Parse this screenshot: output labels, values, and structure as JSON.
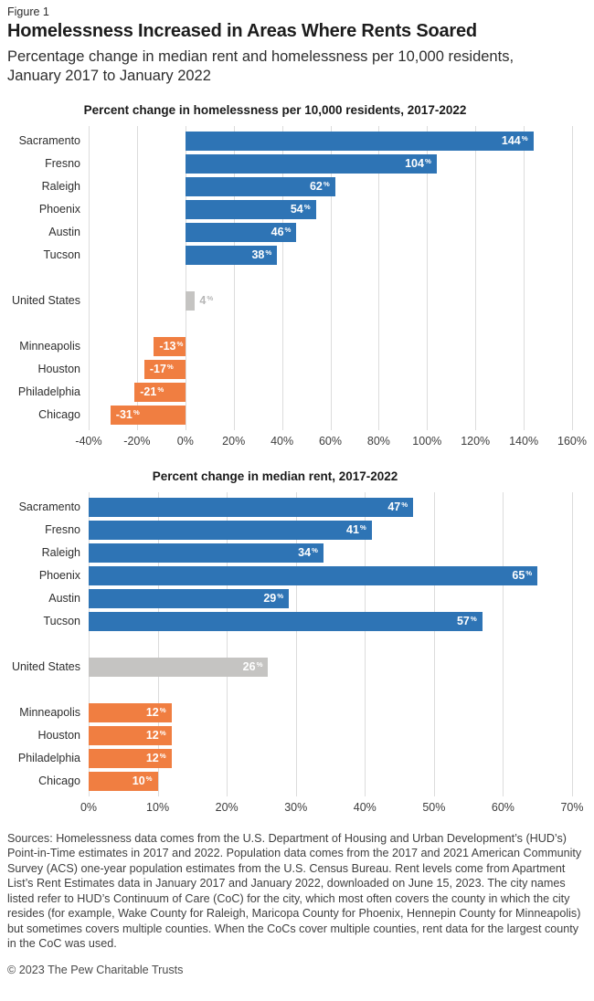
{
  "page": {
    "figure_label": "Figure 1",
    "title": "Homelessness Increased in Areas Where Rents Soared",
    "subtitle": "Percentage change in median rent and homelessness per 10,000 residents, January 2017 to January 2022",
    "sources": "Sources: Homelessness data comes from the U.S. Department of Housing and Urban Development’s (HUD’s) Point-in-Time estimates in 2017 and 2022. Population data comes from the 2017 and 2021 American Community Survey (ACS) one-year population estimates from the U.S. Census Bureau. Rent levels come from Apartment List’s Rent Estimates data in January 2017 and January 2022, downloaded on June 15, 2023. The city names listed refer to HUD’s Continuum of Care (CoC) for the city, which most often covers the county in which the city resides (for example, Wake County for Raleigh, Maricopa County for Phoenix, Hennepin County for Minneapolis) but sometimes covers multiple counties. When the CoCs cover multiple counties, rent data for the largest county in the CoC was used.",
    "copyright": "© 2023 The Pew Charitable Trusts"
  },
  "colors": {
    "blue": "#2E74B5",
    "orange": "#F07E41",
    "gray": "#C5C4C2",
    "gray_label": "#B7B7B7",
    "gridline": "#DCDCDC",
    "axis_text": "#3D3D3D",
    "bar_label": "#FFFFFF"
  },
  "chart_data": [
    {
      "type": "bar",
      "orientation": "horizontal",
      "title": "Percent change in homelessness per 10,000 residents, 2017-2022",
      "xlabel": "",
      "ylabel": "",
      "grid": true,
      "legend": "none",
      "axis": {
        "min": -40,
        "max": 160,
        "step": 20,
        "unit": "%"
      },
      "groups": [
        {
          "color": "blue",
          "rows": [
            {
              "label": "Sacramento",
              "value": 144
            },
            {
              "label": "Fresno",
              "value": 104
            },
            {
              "label": "Raleigh",
              "value": 62
            },
            {
              "label": "Phoenix",
              "value": 54
            },
            {
              "label": "Austin",
              "value": 46
            },
            {
              "label": "Tucson",
              "value": 38
            }
          ]
        },
        {
          "color": "gray",
          "rows": [
            {
              "label": "United States",
              "value": 4
            }
          ]
        },
        {
          "color": "orange",
          "rows": [
            {
              "label": "Minneapolis",
              "value": -13
            },
            {
              "label": "Houston",
              "value": -17
            },
            {
              "label": "Philadelphia",
              "value": -21
            },
            {
              "label": "Chicago",
              "value": -31
            }
          ]
        }
      ]
    },
    {
      "type": "bar",
      "orientation": "horizontal",
      "title": "Percent change in median rent, 2017-2022",
      "xlabel": "",
      "ylabel": "",
      "grid": true,
      "legend": "none",
      "axis": {
        "min": 0,
        "max": 70,
        "step": 10,
        "unit": "%"
      },
      "groups": [
        {
          "color": "blue",
          "rows": [
            {
              "label": "Sacramento",
              "value": 47
            },
            {
              "label": "Fresno",
              "value": 41
            },
            {
              "label": "Raleigh",
              "value": 34
            },
            {
              "label": "Phoenix",
              "value": 65
            },
            {
              "label": "Austin",
              "value": 29
            },
            {
              "label": "Tucson",
              "value": 57
            }
          ]
        },
        {
          "color": "gray",
          "rows": [
            {
              "label": "United States",
              "value": 26
            }
          ]
        },
        {
          "color": "orange",
          "rows": [
            {
              "label": "Minneapolis",
              "value": 12
            },
            {
              "label": "Houston",
              "value": 12
            },
            {
              "label": "Philadelphia",
              "value": 12
            },
            {
              "label": "Chicago",
              "value": 10
            }
          ]
        }
      ]
    }
  ]
}
